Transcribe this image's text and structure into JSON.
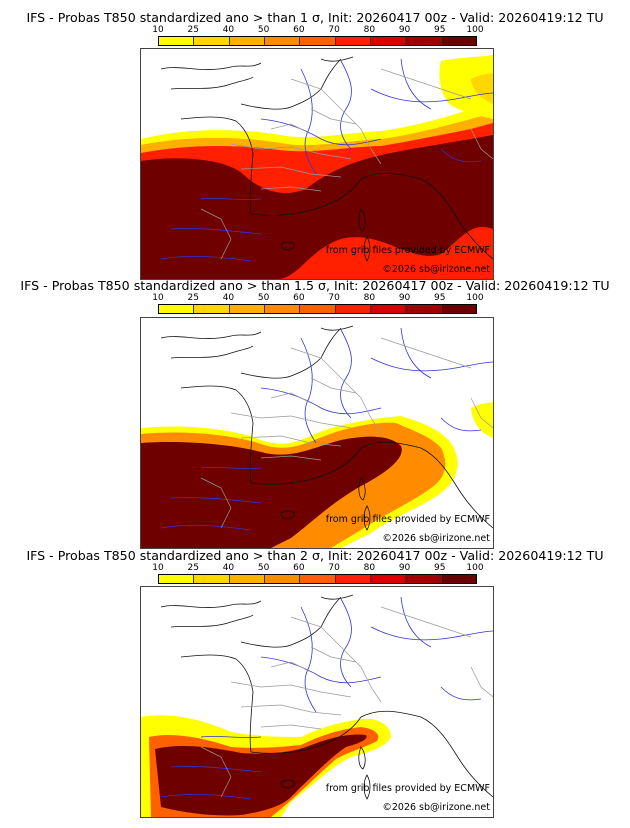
{
  "colorbar": {
    "ticks": [
      "10",
      "25",
      "40",
      "50",
      "60",
      "70",
      "80",
      "90",
      "95",
      "100"
    ],
    "colors": [
      "#ffff00",
      "#ffd700",
      "#ffb000",
      "#ff8c00",
      "#ff6000",
      "#ff2000",
      "#d80000",
      "#a00000",
      "#6a0000"
    ]
  },
  "field_color": "#6e0000",
  "panels": [
    {
      "title": "IFS - Probas T850  standardized ano > than 1 σ, Init: 20260417 00z - Valid: 20260419:12 TU",
      "credit_source": "from grib files provided by ECMWF",
      "credit_copyright": "©2026 sb@irizone.net"
    },
    {
      "title": "IFS - Probas T850  standardized ano > than 1.5 σ, Init: 20260417 00z - Valid: 20260419:12 TU",
      "credit_source": "from grib files provided by ECMWF",
      "credit_copyright": "©2026 sb@irizone.net"
    },
    {
      "title": "IFS - Probas T850  standardized ano > than 2 σ, Init: 20260417 00z - Valid: 20260419:12 TU",
      "credit_source": "from grib files provided by ECMWF",
      "credit_copyright": "©2026 sb@irizone.net"
    }
  ]
}
